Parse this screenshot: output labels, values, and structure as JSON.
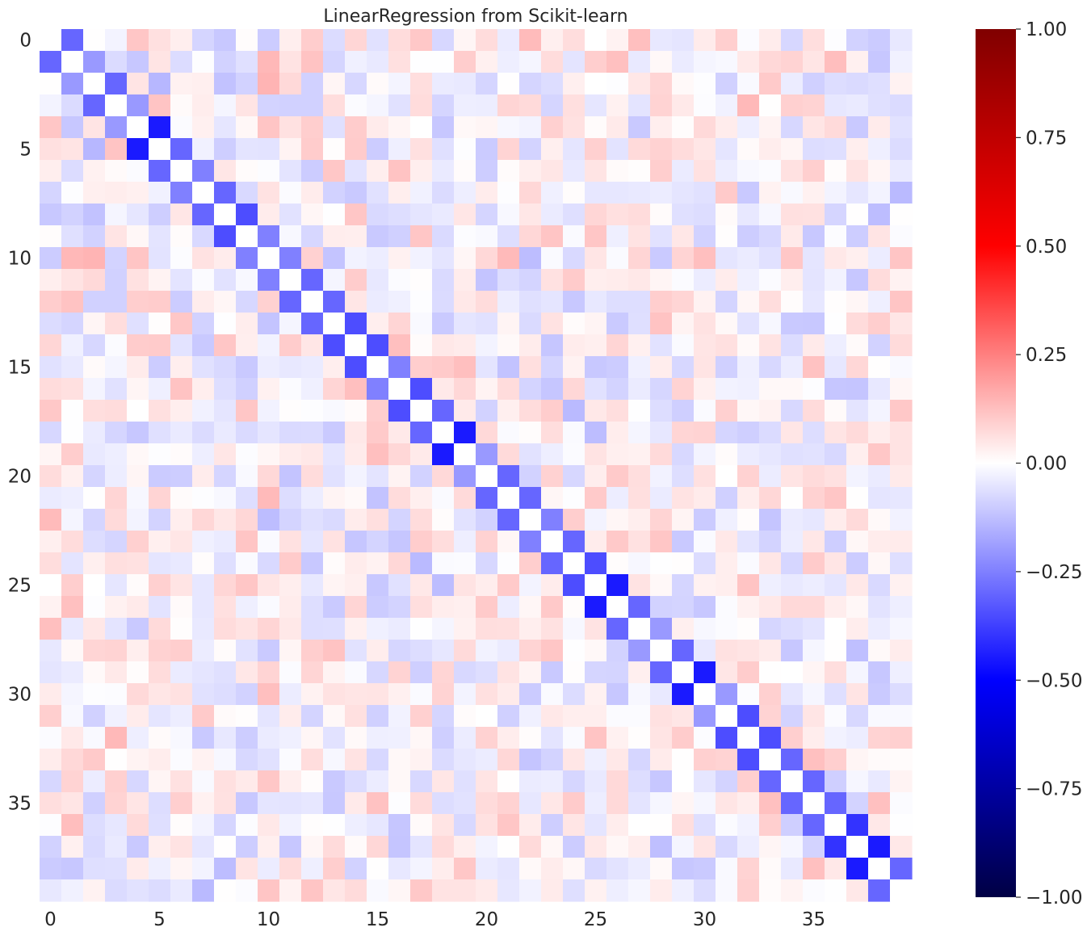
{
  "chart_data": {
    "type": "heatmap",
    "title": "LinearRegression from Scikit-learn",
    "xlabel": "",
    "ylabel": "",
    "grid": false,
    "colormap": "seismic",
    "colormap_stops": [
      "#000044",
      "#0000ff",
      "#ffffff",
      "#ff0000",
      "#800000"
    ],
    "vmin": -1.0,
    "vmax": 1.0,
    "size": 40,
    "x_tick_labels": [
      "0",
      "5",
      "10",
      "15",
      "20",
      "25",
      "30",
      "35"
    ],
    "y_tick_labels": [
      "0",
      "5",
      "10",
      "15",
      "20",
      "25",
      "30",
      "35"
    ],
    "tick_positions": [
      0,
      5,
      10,
      15,
      20,
      25,
      30,
      35
    ],
    "colorbar": {
      "ticks": [
        1.0,
        0.75,
        0.5,
        0.25,
        0.0,
        -0.25,
        -0.5,
        -0.75,
        -1.0
      ],
      "tick_labels": [
        "1.00",
        "0.75",
        "0.50",
        "0.25",
        "0.00",
        "−0.25",
        "−0.50",
        "−0.75",
        "−1.00"
      ]
    },
    "diagonal_value": 0.0,
    "adjacent_diagonal_values": [
      -0.3,
      -0.2,
      -0.3,
      -0.2,
      -0.45,
      -0.3,
      -0.25,
      -0.3,
      -0.35,
      -0.25,
      -0.25,
      -0.3,
      -0.3,
      -0.35,
      -0.35,
      -0.25,
      -0.35,
      -0.3,
      -0.45,
      -0.2,
      -0.3,
      -0.3,
      -0.25,
      -0.3,
      -0.35,
      -0.45,
      -0.3,
      -0.2,
      -0.3,
      -0.45,
      -0.2,
      -0.35,
      -0.35,
      -0.3,
      -0.3,
      -0.3,
      -0.4,
      -0.45,
      -0.3,
      -0.3
    ],
    "off_diagonal_range": [
      -0.15,
      0.15
    ],
    "seed": 20240513
  }
}
